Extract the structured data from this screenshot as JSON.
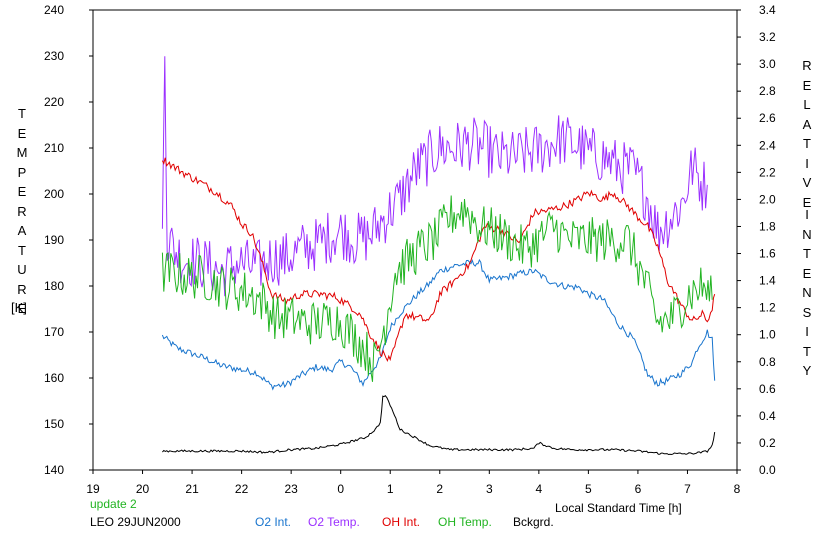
{
  "chart_data": {
    "type": "line",
    "xlabel": "Local Standard Time [h]",
    "x_ticks": [
      "19",
      "20",
      "21",
      "22",
      "23",
      "0",
      "1",
      "2",
      "3",
      "4",
      "5",
      "6",
      "7",
      "8"
    ],
    "xlim": [
      19,
      32
    ],
    "left_axis": {
      "label_letters": [
        "T",
        "E",
        "M",
        "P",
        "E",
        "R",
        "A",
        "T",
        "U",
        "R",
        "E"
      ],
      "unit": "[K]",
      "ylim": [
        140,
        240
      ],
      "ticks": [
        140,
        150,
        160,
        170,
        180,
        190,
        200,
        210,
        220,
        230,
        240
      ]
    },
    "right_axis": {
      "label_word1": [
        "R",
        "E",
        "L",
        "A",
        "T",
        "I",
        "V",
        "E"
      ],
      "label_word2": [
        "I",
        "N",
        "T",
        "E",
        "N",
        "S",
        "I",
        "T",
        "Y"
      ],
      "ylim": [
        0,
        3.4
      ],
      "ticks": [
        "0.0",
        "0.2",
        "0.4",
        "0.6",
        "0.8",
        "1.0",
        "1.2",
        "1.4",
        "1.6",
        "1.8",
        "2.0",
        "2.2",
        "2.4",
        "2.6",
        "2.8",
        "3.0",
        "3.2",
        "3.4"
      ]
    },
    "series": [
      {
        "name": "O2 Int.",
        "axis": "right",
        "color": "#1874cd",
        "noise": 0.025,
        "x": [
          20.4,
          20.7,
          21.0,
          21.3,
          21.6,
          22.0,
          22.3,
          22.6,
          22.9,
          23.2,
          23.5,
          23.8,
          24.0,
          24.2,
          24.45,
          24.6,
          24.8,
          25.0,
          25.2,
          25.5,
          25.8,
          26.0,
          26.3,
          26.6,
          26.8,
          27.0,
          27.3,
          27.6,
          27.9,
          28.2,
          28.5,
          28.8,
          29.0,
          29.3,
          29.6,
          29.9,
          30.0,
          30.2,
          30.4,
          30.6,
          30.9,
          31.1,
          31.2,
          31.4,
          31.5,
          31.55
        ],
        "y": [
          0.99,
          0.9,
          0.86,
          0.82,
          0.77,
          0.74,
          0.72,
          0.62,
          0.63,
          0.7,
          0.76,
          0.74,
          0.8,
          0.76,
          0.64,
          0.72,
          0.82,
          1.05,
          1.16,
          1.28,
          1.38,
          1.47,
          1.51,
          1.53,
          1.53,
          1.4,
          1.42,
          1.45,
          1.47,
          1.4,
          1.36,
          1.35,
          1.3,
          1.26,
          1.08,
          0.97,
          0.89,
          0.7,
          0.64,
          0.66,
          0.72,
          0.8,
          0.9,
          1.02,
          0.96,
          0.66
        ]
      },
      {
        "name": "O2 Temp.",
        "axis": "left",
        "color": "#9b30ff",
        "noise": 6,
        "x": [
          20.4,
          20.45,
          20.5,
          20.8,
          21.2,
          21.6,
          21.9,
          22.3,
          22.6,
          22.9,
          23.2,
          23.5,
          23.8,
          24.0,
          24.3,
          24.6,
          24.9,
          25.2,
          25.5,
          25.8,
          26.0,
          26.3,
          26.6,
          26.9,
          27.2,
          27.5,
          27.8,
          28.1,
          28.4,
          28.7,
          29.0,
          29.3,
          29.6,
          29.9,
          30.2,
          30.4,
          30.6,
          30.9,
          31.1,
          31.3,
          31.4
        ],
        "y": [
          190,
          231,
          190,
          186,
          185,
          183,
          185,
          184,
          186,
          186,
          188,
          189,
          191,
          192,
          190,
          191,
          195,
          199,
          205,
          208,
          210,
          210,
          211,
          210,
          208,
          208,
          209,
          210,
          212,
          211,
          209,
          208,
          206,
          205,
          199,
          192,
          194,
          198,
          206,
          202,
          202
        ]
      },
      {
        "name": "OH Int.",
        "axis": "right",
        "color": "#e00000",
        "noise": 0.03,
        "x": [
          20.4,
          20.6,
          20.9,
          21.2,
          21.5,
          21.8,
          22.0,
          22.2,
          22.4,
          22.6,
          22.9,
          23.2,
          23.6,
          23.9,
          24.2,
          24.4,
          24.6,
          24.8,
          25.0,
          25.3,
          25.6,
          25.8,
          26.0,
          26.3,
          26.6,
          26.9,
          27.2,
          27.6,
          27.9,
          28.2,
          28.5,
          28.8,
          29.0,
          29.3,
          29.5,
          29.8,
          30.0,
          30.2,
          30.4,
          30.6,
          30.9,
          31.1,
          31.3,
          31.4,
          31.5,
          31.55
        ],
        "y": [
          2.3,
          2.25,
          2.18,
          2.12,
          2.05,
          1.95,
          1.82,
          1.75,
          1.55,
          1.3,
          1.25,
          1.3,
          1.3,
          1.28,
          1.21,
          1.15,
          1.0,
          0.88,
          0.8,
          1.15,
          1.12,
          1.1,
          1.3,
          1.4,
          1.52,
          1.8,
          1.78,
          1.68,
          1.9,
          1.92,
          1.95,
          2.0,
          2.05,
          2.0,
          2.05,
          1.95,
          1.87,
          1.8,
          1.65,
          1.4,
          1.2,
          1.1,
          1.15,
          1.1,
          1.2,
          1.3
        ]
      },
      {
        "name": "OH Temp.",
        "axis": "left",
        "color": "#22b422",
        "noise": 5,
        "x": [
          20.4,
          20.6,
          20.9,
          21.2,
          21.6,
          22.0,
          22.4,
          22.7,
          23.0,
          23.3,
          23.6,
          23.9,
          24.2,
          24.5,
          24.7,
          24.9,
          25.1,
          25.4,
          25.6,
          25.9,
          26.2,
          26.5,
          26.8,
          27.1,
          27.4,
          27.7,
          28.0,
          28.3,
          28.6,
          28.9,
          29.2,
          29.5,
          29.8,
          30.1,
          30.4,
          30.7,
          31.0,
          31.3,
          31.5
        ],
        "y": [
          183,
          183,
          182,
          182,
          180,
          179,
          177,
          173,
          173,
          172,
          172,
          173,
          170,
          166,
          163,
          172,
          183,
          186,
          188,
          190,
          195,
          197,
          193,
          192,
          190,
          188,
          190,
          193,
          190,
          190,
          190,
          190,
          190,
          182,
          172,
          173,
          178,
          180,
          177
        ]
      },
      {
        "name": "Bckgrd.",
        "axis": "right",
        "color": "#000000",
        "noise": 0.008,
        "x": [
          20.4,
          21.0,
          21.5,
          22.0,
          22.5,
          23.0,
          23.5,
          24.0,
          24.3,
          24.5,
          24.7,
          24.8,
          24.85,
          24.9,
          25.0,
          25.2,
          25.4,
          25.8,
          26.2,
          26.6,
          27.0,
          27.5,
          27.9,
          28.0,
          28.3,
          28.7,
          29.0,
          29.5,
          30.0,
          30.5,
          31.0,
          31.3,
          31.4,
          31.5,
          31.55
        ],
        "y": [
          0.14,
          0.14,
          0.14,
          0.14,
          0.13,
          0.15,
          0.16,
          0.19,
          0.22,
          0.24,
          0.3,
          0.35,
          0.54,
          0.55,
          0.48,
          0.3,
          0.26,
          0.18,
          0.15,
          0.15,
          0.15,
          0.15,
          0.16,
          0.2,
          0.16,
          0.15,
          0.15,
          0.15,
          0.14,
          0.12,
          0.12,
          0.13,
          0.14,
          0.18,
          0.28
        ]
      }
    ]
  },
  "footer": {
    "status": "update 2",
    "status_color": "#22b422",
    "site_date": "LEO 29JUN2000"
  }
}
